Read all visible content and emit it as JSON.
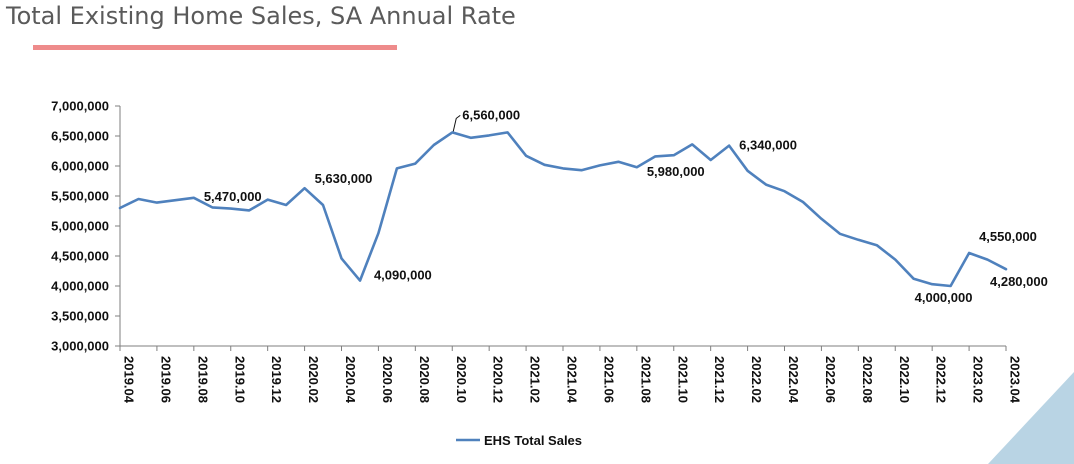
{
  "page": {
    "title": "Total Existing Home Sales, SA Annual Rate"
  },
  "colors": {
    "series": "#4f81bd",
    "underline": "#ee8b8b",
    "corner": "#b9d4e4"
  },
  "chart_data": {
    "type": "line",
    "title": "Total Existing Home Sales, SA Annual Rate",
    "xlabel": "",
    "ylabel": "",
    "ylim": [
      3000000,
      7000000
    ],
    "yticks": [
      "7,000,000",
      "6,500,000",
      "6,000,000",
      "5,500,000",
      "5,000,000",
      "4,500,000",
      "4,000,000",
      "3,500,000",
      "3,000,000"
    ],
    "ytick_values": [
      7000000,
      6500000,
      6000000,
      5500000,
      5000000,
      4500000,
      4000000,
      3500000,
      3000000
    ],
    "x": [
      "2019.04",
      "2019.05",
      "2019.06",
      "2019.07",
      "2019.08",
      "2019.09",
      "2019.10",
      "2019.11",
      "2019.12",
      "2020.01",
      "2020.02",
      "2020.03",
      "2020.04",
      "2020.05",
      "2020.06",
      "2020.07",
      "2020.08",
      "2020.09",
      "2020.10",
      "2020.11",
      "2020.12",
      "2021.01",
      "2021.02",
      "2021.03",
      "2021.04",
      "2021.05",
      "2021.06",
      "2021.07",
      "2021.08",
      "2021.09",
      "2021.10",
      "2021.11",
      "2021.12",
      "2022.01",
      "2022.02",
      "2022.03",
      "2022.04",
      "2022.05",
      "2022.06",
      "2022.07",
      "2022.08",
      "2022.09",
      "2022.10",
      "2022.11",
      "2022.12",
      "2023.01",
      "2023.02",
      "2023.03",
      "2023.04"
    ],
    "xtick_labels": [
      "2019.04",
      "2019.06",
      "2019.08",
      "2019.10",
      "2019.12",
      "2020.02",
      "2020.04",
      "2020.06",
      "2020.08",
      "2020.10",
      "2020.12",
      "2021.02",
      "2021.04",
      "2021.06",
      "2021.08",
      "2021.10",
      "2021.12",
      "2022.02",
      "2022.04",
      "2022.06",
      "2022.08",
      "2022.10",
      "2022.12",
      "2023.02",
      "2023.04"
    ],
    "series": [
      {
        "name": "EHS Total Sales",
        "values": [
          5300000,
          5450000,
          5390000,
          5430000,
          5470000,
          5310000,
          5290000,
          5260000,
          5440000,
          5350000,
          5630000,
          5350000,
          4460000,
          4090000,
          4880000,
          5960000,
          6040000,
          6350000,
          6560000,
          6470000,
          6510000,
          6560000,
          6170000,
          6020000,
          5960000,
          5930000,
          6010000,
          6070000,
          5980000,
          6160000,
          6180000,
          6360000,
          6100000,
          6340000,
          5920000,
          5690000,
          5580000,
          5400000,
          5120000,
          4870000,
          4770000,
          4680000,
          4440000,
          4120000,
          4030000,
          4000000,
          4550000,
          4440000,
          4280000
        ]
      }
    ],
    "annotations": [
      {
        "index": 4,
        "text": "5,470,000"
      },
      {
        "index": 10,
        "text": "5,630,000"
      },
      {
        "index": 13,
        "text": "4,090,000"
      },
      {
        "index": 18,
        "text": "6,560,000"
      },
      {
        "index": 28,
        "text": "5,980,000"
      },
      {
        "index": 33,
        "text": "6,340,000"
      },
      {
        "index": 45,
        "text": "4,000,000"
      },
      {
        "index": 46,
        "text": "4,550,000"
      },
      {
        "index": 48,
        "text": "4,280,000"
      }
    ],
    "legend": {
      "position": "bottom",
      "label": "EHS Total Sales"
    }
  }
}
